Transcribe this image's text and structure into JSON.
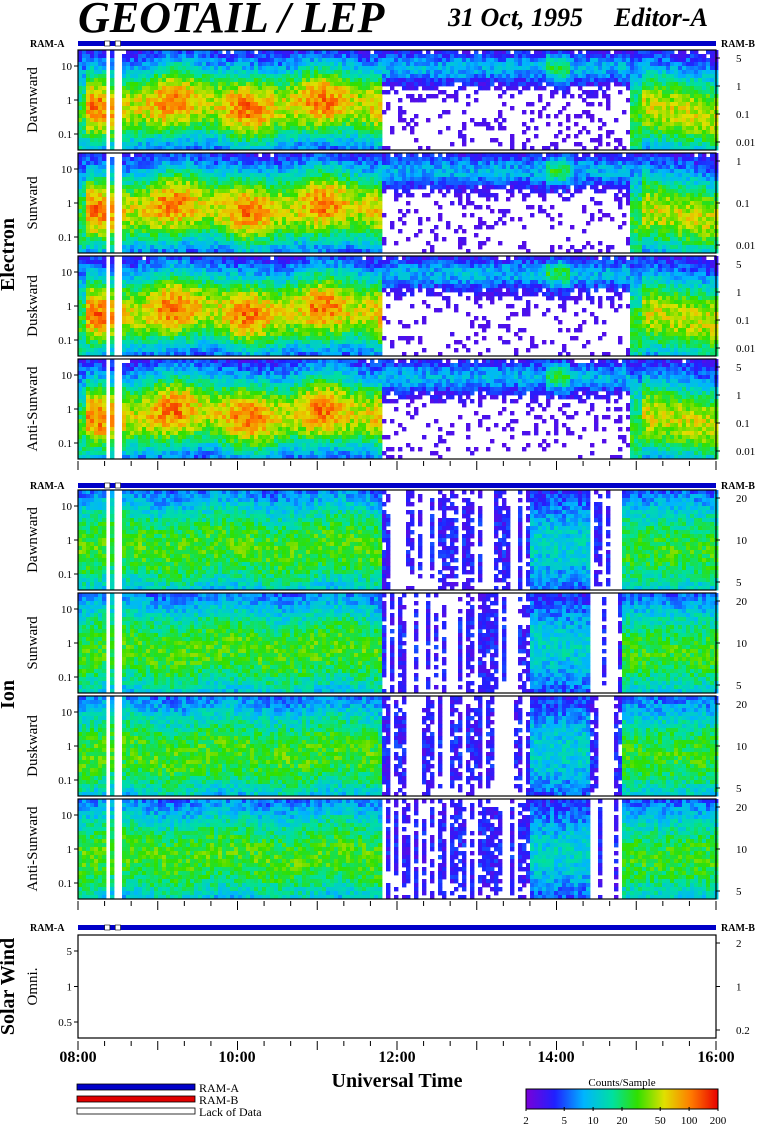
{
  "header": {
    "title": "GEOTAIL / LEP",
    "date": "31 Oct, 1995",
    "editor": "Editor-A"
  },
  "mode_bar": {
    "left_label": "RAM-A",
    "right_label": "RAM-B"
  },
  "groups": [
    {
      "name": "Electron",
      "panels": [
        {
          "label": "Dawnward",
          "left_ticks": [
            "10",
            "1",
            "0.1"
          ],
          "right_ticks": [
            "5",
            "1",
            "0.1",
            "0.01"
          ]
        },
        {
          "label": "Sunward",
          "left_ticks": [
            "10",
            "1",
            "0.1"
          ],
          "right_ticks": [
            "1",
            "0.1",
            "0.01"
          ]
        },
        {
          "label": "Duskward",
          "left_ticks": [
            "10",
            "1",
            "0.1"
          ],
          "right_ticks": [
            "5",
            "1",
            "0.1",
            "0.01"
          ]
        },
        {
          "label": "Anti-Sunward",
          "left_ticks": [
            "10",
            "1",
            "0.1"
          ],
          "right_ticks": [
            "5",
            "1",
            "0.1",
            "0.01"
          ]
        }
      ]
    },
    {
      "name": "Ion",
      "panels": [
        {
          "label": "Dawnward",
          "left_ticks": [
            "10",
            "1",
            "0.1"
          ],
          "right_ticks": [
            "20",
            "10",
            "5"
          ]
        },
        {
          "label": "Sunward",
          "left_ticks": [
            "10",
            "1",
            "0.1"
          ],
          "right_ticks": [
            "20",
            "10",
            "5"
          ]
        },
        {
          "label": "Duskward",
          "left_ticks": [
            "10",
            "1",
            "0.1"
          ],
          "right_ticks": [
            "20",
            "10",
            "5"
          ]
        },
        {
          "label": "Anti-Sunward",
          "left_ticks": [
            "10",
            "1",
            "0.1"
          ],
          "right_ticks": [
            "20",
            "10",
            "5"
          ]
        }
      ]
    },
    {
      "name": "Solar Wind",
      "panels": [
        {
          "label": "Omni.",
          "left_ticks": [
            "5",
            "1",
            "0.5"
          ],
          "right_ticks": [
            "2",
            "1",
            "0.2"
          ]
        }
      ]
    }
  ],
  "x_axis": {
    "title": "Universal Time",
    "ticks": [
      "08:00",
      "10:00",
      "12:00",
      "14:00",
      "16:00"
    ]
  },
  "legend": {
    "items": [
      {
        "label": "RAM-A",
        "color": "#0000c8"
      },
      {
        "label": "RAM-B",
        "color": "#e00000"
      },
      {
        "label": "Lack of Data",
        "color": "#ffffff"
      }
    ]
  },
  "colorbar": {
    "title": "Counts/Sample",
    "ticks": [
      "2",
      "5",
      "10",
      "20",
      "50",
      "100",
      "200"
    ]
  },
  "chart_data": {
    "type": "heatmap",
    "xlabel": "Universal Time",
    "x_range": [
      "08:00",
      "16:00"
    ],
    "color_scale": "log",
    "color_range": [
      2,
      200
    ],
    "color_label": "Counts/Sample",
    "data_gaps_utc": [
      [
        "08:20",
        "08:24"
      ],
      [
        "08:28",
        "08:32"
      ]
    ]
  }
}
